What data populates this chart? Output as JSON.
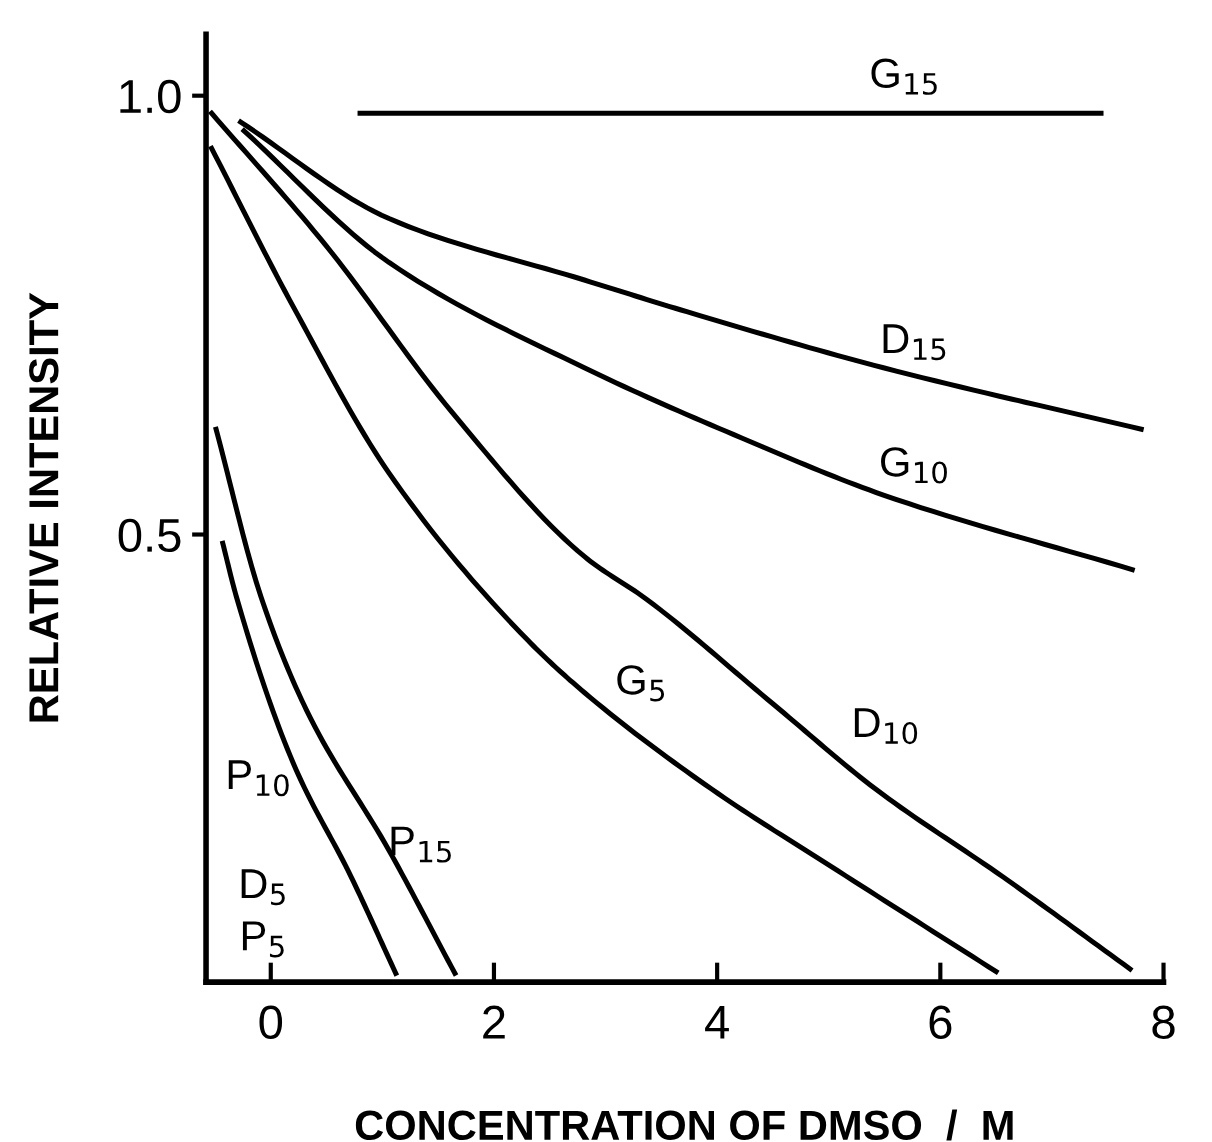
{
  "chart_data": {
    "type": "line",
    "xlabel": "CONCENTRATION OF DMSO  /  M",
    "ylabel": "RELATIVE INTENSITY",
    "xlim": [
      -0.58,
      8
    ],
    "ylim": [
      -0.01,
      1.07
    ],
    "xticks": [
      0,
      2,
      4,
      6,
      8
    ],
    "yticks": [
      0.5,
      {
        "value": 1.0,
        "label": "1.0"
      }
    ],
    "grid": false,
    "marker": "none",
    "line_style": "solid",
    "series": [
      {
        "color": "#000000",
        "x": [
          0.8,
          7.44
        ],
        "values": [
          0.98,
          0.98
        ]
      },
      {
        "color": "#000000",
        "x": [
          -0.27,
          1.06,
          2.81,
          3.83,
          5.49,
          7.8
        ],
        "values": [
          0.97,
          0.86,
          0.79,
          0.75,
          0.69,
          0.62
        ]
      },
      {
        "color": "#000000",
        "x": [
          -0.24,
          1.06,
          2.81,
          4.22,
          5.49,
          7.72
        ],
        "values": [
          0.96,
          0.81,
          0.69,
          0.61,
          0.545,
          0.46
        ]
      },
      {
        "color": "#000000",
        "x": [
          -0.53,
          0.49,
          1.62,
          2.81,
          3.37,
          4.51,
          5.42,
          6.56,
          7.7
        ],
        "values": [
          0.98,
          0.83,
          0.64,
          0.475,
          0.426,
          0.306,
          0.21,
          0.11,
          0.005
        ]
      },
      {
        "color": "#000000",
        "x": [
          -0.53,
          0.2,
          1.06,
          2.3,
          2.81,
          3.95,
          5.08,
          6.5
        ],
        "values": [
          0.94,
          0.76,
          0.57,
          0.38,
          0.32,
          0.21,
          0.117,
          0.002
        ]
      },
      {
        "color": "#000000",
        "x": [
          -0.49,
          -0.09,
          0.32,
          1.06,
          1.65
        ],
        "values": [
          0.62,
          0.43,
          0.3,
          0.14,
          0.0
        ]
      },
      {
        "color": "#000000",
        "x": [
          -0.43,
          -0.31,
          0.2,
          0.72,
          1.12
        ],
        "values": [
          0.49,
          0.43,
          0.24,
          0.11,
          0.0
        ]
      }
    ],
    "annotations": [
      "G$_{15}$",
      "D$_{15}$",
      "G$_{10}$",
      "D$_{10}$",
      "G$_{5}$",
      "P$_{15}$",
      "P$_{10}$",
      "D$_{5}$",
      "P$_{5}$"
    ]
  }
}
